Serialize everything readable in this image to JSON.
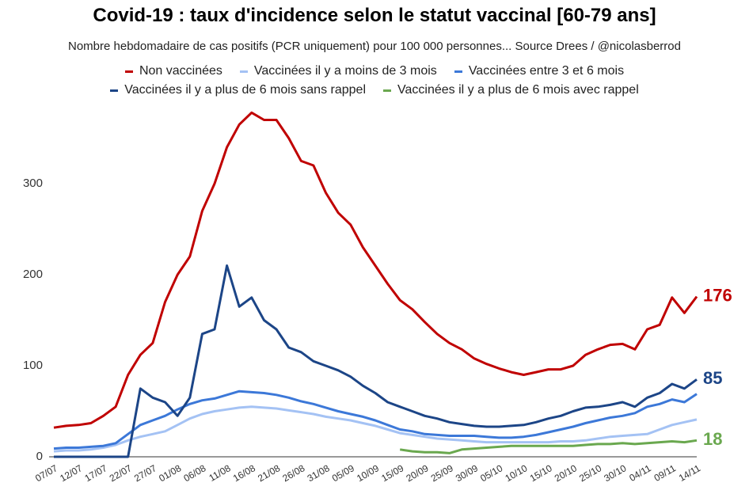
{
  "chart_data": {
    "type": "line",
    "title": "Covid-19 : taux d'incidence selon le statut vaccinal [60-79 ans]",
    "subtitle": "Nombre hebdomadaire de cas positifs (PCR uniquement) pour 100 000 personnes... Source Drees / @nicolasberrod",
    "categories": [
      "07/07",
      null,
      "12/07",
      null,
      "17/07",
      null,
      "22/07",
      null,
      "27/07",
      null,
      "01/08",
      null,
      "06/08",
      null,
      "11/08",
      null,
      "16/08",
      null,
      "21/08",
      null,
      "26/08",
      null,
      "31/08",
      null,
      "05/09",
      null,
      "10/09",
      null,
      "15/09",
      null,
      "20/09",
      null,
      "25/09",
      null,
      "30/09",
      null,
      "05/10",
      null,
      "10/10",
      null,
      "15/10",
      null,
      "20/10",
      null,
      "25/10",
      null,
      "30/10",
      null,
      "04/11",
      null,
      "09/11",
      null,
      "14/11"
    ],
    "ylim": [
      0,
      390
    ],
    "yticks": [
      0,
      100,
      200,
      300
    ],
    "grid": false,
    "series": [
      {
        "name": "Non vaccinées",
        "color": "#c00000",
        "values": [
          32,
          34,
          35,
          37,
          45,
          55,
          90,
          112,
          125,
          170,
          200,
          220,
          270,
          300,
          340,
          365,
          378,
          370,
          370,
          350,
          325,
          320,
          290,
          268,
          255,
          230,
          210,
          190,
          172,
          162,
          148,
          135,
          125,
          118,
          108,
          102,
          97,
          93,
          90,
          93,
          96,
          96,
          100,
          112,
          118,
          123,
          124,
          118,
          140,
          145,
          175,
          158,
          176
        ]
      },
      {
        "name": "Vaccinées il y a moins de 3 mois",
        "color": "#a4c2f4",
        "values": [
          6,
          7,
          7,
          8,
          10,
          13,
          18,
          22,
          25,
          28,
          35,
          42,
          47,
          50,
          52,
          54,
          55,
          54,
          53,
          51,
          49,
          47,
          44,
          42,
          40,
          37,
          34,
          30,
          26,
          24,
          22,
          20,
          19,
          18,
          17,
          16,
          16,
          16,
          16,
          16,
          16,
          17,
          17,
          18,
          20,
          22,
          23,
          24,
          25,
          30,
          35,
          38,
          41
        ]
      },
      {
        "name": "Vaccinées entre 3 et 6 mois",
        "color": "#3c78d8",
        "values": [
          9,
          10,
          10,
          11,
          12,
          15,
          25,
          35,
          40,
          45,
          52,
          58,
          62,
          64,
          68,
          72,
          71,
          70,
          68,
          65,
          61,
          58,
          54,
          50,
          47,
          44,
          40,
          35,
          30,
          28,
          25,
          24,
          23,
          23,
          23,
          22,
          21,
          21,
          22,
          24,
          27,
          30,
          33,
          37,
          40,
          43,
          45,
          48,
          55,
          58,
          63,
          60,
          69
        ]
      },
      {
        "name": "Vaccinées il y a plus de 6 mois sans rappel",
        "color": "#1c4587",
        "values": [
          0,
          0,
          0,
          0,
          0,
          0,
          0,
          75,
          65,
          60,
          45,
          65,
          135,
          140,
          210,
          165,
          175,
          150,
          140,
          120,
          115,
          105,
          100,
          95,
          88,
          78,
          70,
          60,
          55,
          50,
          45,
          42,
          38,
          36,
          34,
          33,
          33,
          34,
          35,
          38,
          42,
          45,
          50,
          54,
          55,
          57,
          60,
          55,
          65,
          70,
          80,
          75,
          85
        ]
      },
      {
        "name": "Vaccinées il y a plus de 6 mois avec rappel",
        "color": "#6aa84f",
        "values": [
          null,
          null,
          null,
          null,
          null,
          null,
          null,
          null,
          null,
          null,
          null,
          null,
          null,
          null,
          null,
          null,
          null,
          null,
          null,
          null,
          null,
          null,
          null,
          null,
          null,
          null,
          null,
          null,
          8,
          6,
          5,
          5,
          4,
          8,
          9,
          10,
          11,
          12,
          12,
          12,
          12,
          12,
          12,
          13,
          14,
          14,
          15,
          14,
          15,
          16,
          17,
          16,
          18
        ]
      }
    ],
    "annotations": [
      {
        "text": "176",
        "y": 176,
        "color": "#c00000"
      },
      {
        "text": "85",
        "y": 85,
        "color": "#1c4587"
      },
      {
        "text": "18",
        "y": 18,
        "color": "#6aa84f"
      }
    ]
  }
}
